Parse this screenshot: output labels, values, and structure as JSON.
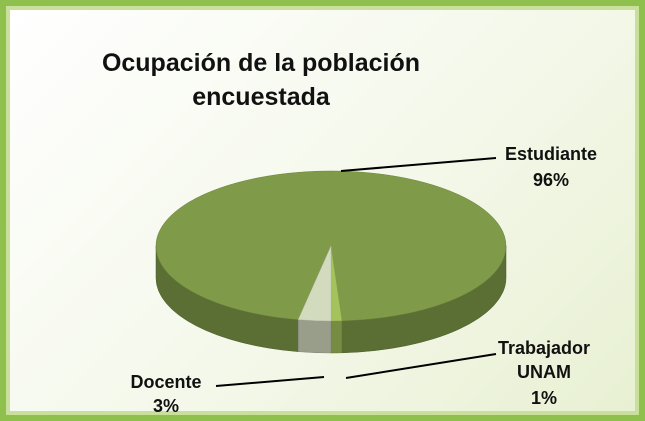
{
  "chart_data": {
    "type": "pie3d",
    "title": "Ocupación de la población encuestada",
    "categories": [
      "Estudiante",
      "Trabajador UNAM",
      "Docente"
    ],
    "values": [
      96,
      1,
      3
    ],
    "value_labels": [
      "96%",
      "1%",
      "3%"
    ],
    "colors": [
      "#7f9a48",
      "#a4c35c",
      "#d3dbbf"
    ]
  }
}
